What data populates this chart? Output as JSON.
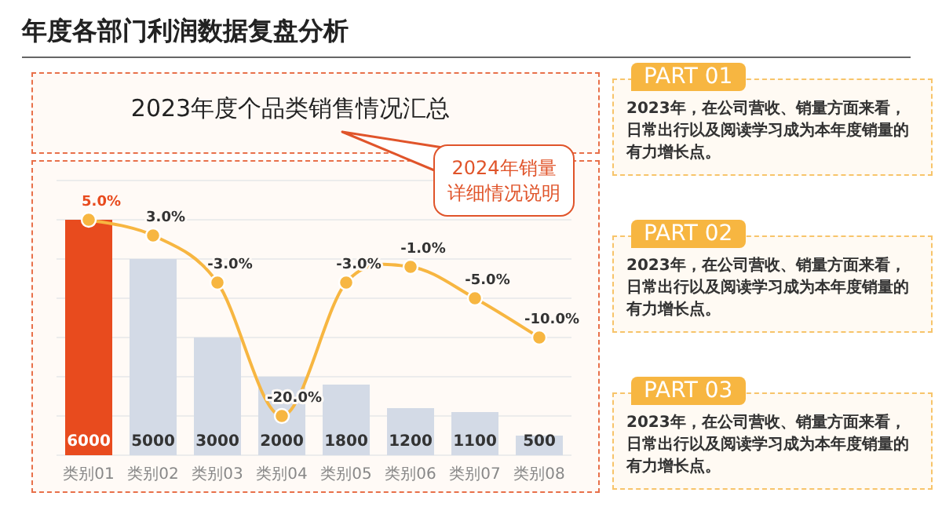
{
  "chart_data": [
    {
      "type": "bar",
      "title": "年度各部门利润数据复盘分析",
      "subtitle": "2023年度个品类销售情况汇总",
      "annotations": [
        "2024年销量详细情况说明"
      ],
      "categories": [
        "类别01",
        "类别02",
        "类别03",
        "类别04",
        "类别05",
        "类别06",
        "类别07",
        "类别08"
      ],
      "ylim": [
        0,
        7000
      ],
      "yticks": [
        {
          "value": 0,
          "label": null
        },
        {
          "value": 1000,
          "label": null
        },
        {
          "value": 2000,
          "label": null
        },
        {
          "value": 3000,
          "label": null
        },
        {
          "value": 4000,
          "label": null
        },
        {
          "value": 5000,
          "label": null
        },
        {
          "value": 6000,
          "label": null
        },
        {
          "value": 7000,
          "label": null
        }
      ],
      "y2lim": [
        -25,
        10
      ],
      "tick_labels": "x",
      "grid": "y",
      "series": [
        {
          "type": "bar",
          "colors": [
            "#e84b1e",
            "#d3dae6",
            "#d3dae6",
            "#d3dae6",
            "#d3dae6",
            "#d3dae6",
            "#d3dae6",
            "#d3dae6"
          ],
          "values": [
            6000,
            5000,
            3000,
            2000,
            1800,
            1200,
            1100,
            500
          ],
          "value_labels": [
            "6000",
            "5000",
            "3000",
            "2000",
            "1800",
            "1200",
            "1100",
            "500"
          ]
        },
        {
          "type": "line",
          "axis": "y2",
          "color": "#f7b641",
          "marker": "circle",
          "values": [
            5.0,
            3.0,
            -3.0,
            -20.0,
            -3.0,
            -1.0,
            -5.0,
            -10.0
          ],
          "value_labels": [
            "5.0%",
            "3.0%",
            "-3.0%",
            "-20.0%",
            "-3.0%",
            "-1.0%",
            "-5.0%",
            "-10.0%"
          ]
        }
      ]
    },
    {
      "type": "other",
      "annotations": [
        "PART 01",
        "2023年，在公司营收、销量方面来看，日常出行以及阅读学习成为本年度销量的有力增长点。",
        "PART 02",
        "2023年，在公司营收、销量方面来看，日常出行以及阅读学习成为本年度销量的有力增长点。",
        "PART 03",
        "2023年，在公司营收、销量方面来看，日常出行以及阅读学习成为本年度销量的有力增长点。"
      ]
    }
  ]
}
